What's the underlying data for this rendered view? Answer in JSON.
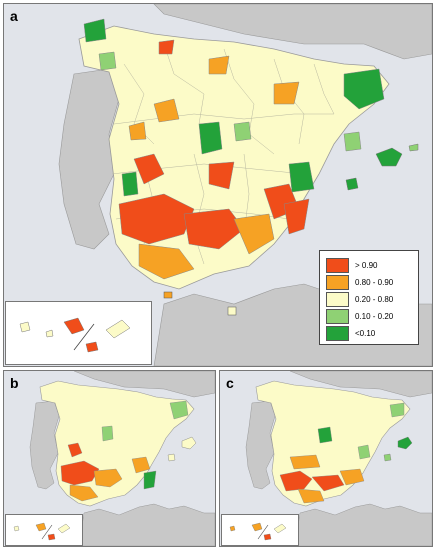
{
  "panels": [
    {
      "label": "a"
    },
    {
      "label": "b"
    },
    {
      "label": "c"
    }
  ],
  "legend": {
    "entries": [
      {
        "label": "> 0.90",
        "color": "#f04d1a"
      },
      {
        "label": "0.80 - 0.90",
        "color": "#f6a224"
      },
      {
        "label": "0.20 - 0.80",
        "color": "#fcfbc8"
      },
      {
        "label": "0.10 - 0.20",
        "color": "#8fd174"
      },
      {
        "label": "<0.10",
        "color": "#23a23a"
      }
    ]
  },
  "colors": {
    "sea": "#e1e4ea",
    "foreign_land": "#c8c8c8",
    "border": "#888888"
  }
}
